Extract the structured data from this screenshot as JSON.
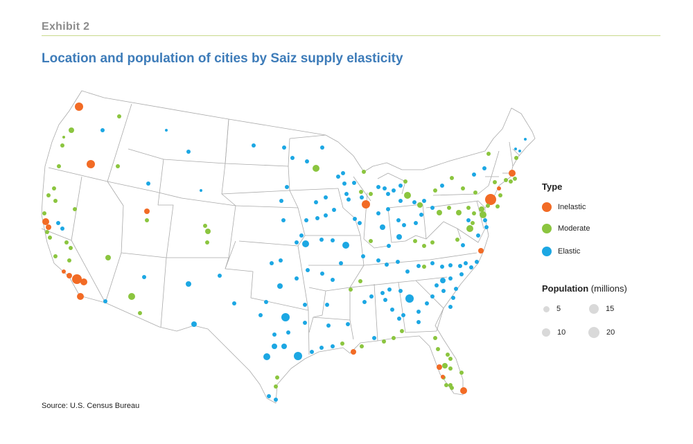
{
  "header": {
    "exhibit": "Exhibit 2",
    "title": "Location and population of cities by Saiz supply elasticity"
  },
  "colors": {
    "inelastic": "#f26b25",
    "moderate": "#8bc53f",
    "elastic": "#1ca7e3",
    "state_border": "#a9a9a9",
    "rule": "#c9d98c"
  },
  "legend": {
    "type_title": "Type",
    "types": [
      {
        "key": "inelastic",
        "label": "Inelastic"
      },
      {
        "key": "moderate",
        "label": "Moderate"
      },
      {
        "key": "elastic",
        "label": "Elastic"
      }
    ],
    "population_title_bold": "Population",
    "population_title_rest": " (millions)",
    "population_sizes": [
      {
        "label": "5",
        "value": 5
      },
      {
        "label": "15",
        "value": 15
      },
      {
        "label": "10",
        "value": 10
      },
      {
        "label": "20",
        "value": 20
      }
    ]
  },
  "source": "Source: U.S. Census Bureau"
}
